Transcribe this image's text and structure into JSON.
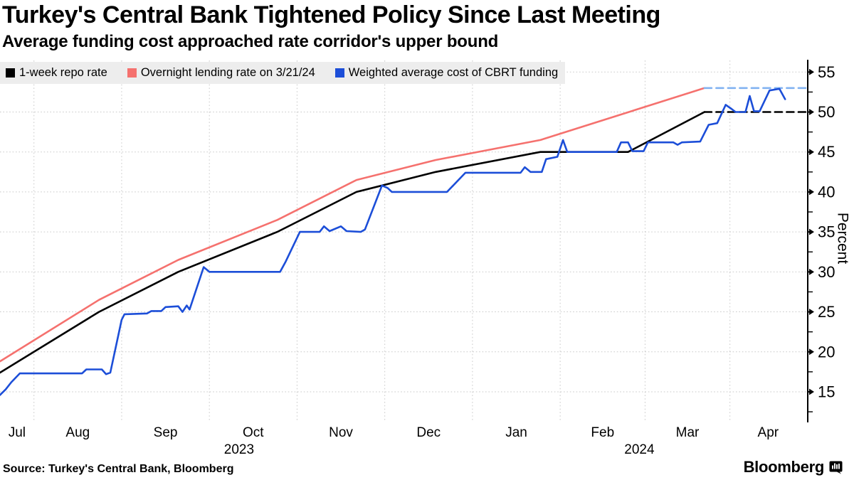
{
  "header": {
    "title": "Turkey's Central Bank Tightened Policy Since Last Meeting",
    "subtitle": "Average funding cost approached rate corridor's upper bound"
  },
  "legend": [
    {
      "label": "1-week repo rate",
      "color": "#000000"
    },
    {
      "label": "Overnight lending rate on 3/21/24",
      "color": "#f5716e"
    },
    {
      "label": "Weighted average cost of CBRT funding",
      "color": "#1c4ed8"
    }
  ],
  "footer": {
    "source": "Source: Turkey's Central Bank, Bloomberg",
    "brand": "Bloomberg"
  },
  "chart_data": {
    "type": "line",
    "title": "Turkey's Central Bank Tightened Policy Since Last Meeting",
    "x_unit": "days since 2023-07-20",
    "x_domain": [
      0,
      285
    ],
    "ylim": [
      11.35,
      56.45
    ],
    "grid": true,
    "legend_position": "top-left",
    "yaxis": {
      "label": "Percent",
      "ticks": [
        15,
        20,
        25,
        30,
        35,
        40,
        45,
        50,
        55
      ],
      "minor_tick_step": 2.5,
      "minor_tick_range": [
        12.5,
        55
      ]
    },
    "xaxis": {
      "month_start_days": [
        12,
        43,
        74,
        105,
        136,
        167,
        198,
        228,
        258
      ],
      "month_labels": [
        {
          "label": "Jul",
          "day": 6
        },
        {
          "label": "Aug",
          "day": 27.5
        },
        {
          "label": "Sep",
          "day": 58.5
        },
        {
          "label": "Oct",
          "day": 89.5
        },
        {
          "label": "Nov",
          "day": 120.5
        },
        {
          "label": "Dec",
          "day": 151.5
        },
        {
          "label": "Jan",
          "day": 182.5
        },
        {
          "label": "Feb",
          "day": 213
        },
        {
          "label": "Mar",
          "day": 243
        },
        {
          "label": "Apr",
          "day": 271.5
        }
      ],
      "year_labels": [
        {
          "label": "2023",
          "day": 84.5
        },
        {
          "label": "2024",
          "day": 226
        }
      ]
    },
    "colors": {
      "repo": "#000000",
      "lending": "#f5716e",
      "wacf": "#1c4ed8",
      "lending_projection": "#82b3f1",
      "gridline": "#c9c9c9",
      "legend_bg": "#ededed"
    },
    "series": [
      {
        "name": "1-week repo rate",
        "color": "#000000",
        "style": "solid",
        "width": 2.6,
        "points": [
          [
            0,
            17.4
          ],
          [
            35,
            25
          ],
          [
            63,
            30
          ],
          [
            98,
            35
          ],
          [
            126,
            40
          ],
          [
            154,
            42.5
          ],
          [
            191,
            45
          ],
          [
            222,
            45
          ],
          [
            249,
            50
          ]
        ]
      },
      {
        "name": "Overnight lending rate on 3/21/24",
        "color": "#f5716e",
        "style": "solid",
        "width": 2.6,
        "points": [
          [
            0,
            18.8
          ],
          [
            35,
            26.5
          ],
          [
            63,
            31.5
          ],
          [
            98,
            36.5
          ],
          [
            126,
            41.5
          ],
          [
            154,
            44
          ],
          [
            191,
            46.5
          ],
          [
            249,
            53
          ]
        ]
      },
      {
        "name": "1-week repo rate held after 3/21/24",
        "color": "#000000",
        "style": "dashed",
        "width": 2.6,
        "points": [
          [
            249,
            50
          ],
          [
            285,
            50
          ]
        ]
      },
      {
        "name": "Overnight lending rate held after 3/21/24",
        "color": "#82b3f1",
        "style": "dashed",
        "width": 2.6,
        "points": [
          [
            249,
            53
          ],
          [
            285,
            53
          ]
        ]
      },
      {
        "name": "Weighted average cost of CBRT funding",
        "color": "#1c4ed8",
        "style": "solid",
        "width": 2.6,
        "points": [
          [
            0,
            14.6
          ],
          [
            2,
            15.3
          ],
          [
            4,
            16.2
          ],
          [
            7,
            17.3
          ],
          [
            29,
            17.3
          ],
          [
            30.5,
            17.8
          ],
          [
            36,
            17.8
          ],
          [
            37.5,
            17.2
          ],
          [
            39,
            17.4
          ],
          [
            43,
            24.0
          ],
          [
            44,
            24.7
          ],
          [
            52,
            24.8
          ],
          [
            53.5,
            25.1
          ],
          [
            57,
            25.1
          ],
          [
            58.5,
            25.6
          ],
          [
            63,
            25.7
          ],
          [
            64.5,
            25.0
          ],
          [
            66,
            25.8
          ],
          [
            67,
            25.3
          ],
          [
            72,
            30.6
          ],
          [
            74,
            30.0
          ],
          [
            99,
            30.0
          ],
          [
            101,
            31.3
          ],
          [
            106,
            35.0
          ],
          [
            113,
            35.0
          ],
          [
            114.5,
            35.7
          ],
          [
            116.5,
            35.1
          ],
          [
            120.5,
            35.7
          ],
          [
            122.5,
            35.1
          ],
          [
            127.5,
            35.0
          ],
          [
            129,
            35.3
          ],
          [
            135,
            40.8
          ],
          [
            137,
            40.5
          ],
          [
            138.5,
            40.0
          ],
          [
            158,
            40.0
          ],
          [
            164.5,
            42.4
          ],
          [
            184,
            42.4
          ],
          [
            185.5,
            43.1
          ],
          [
            187.5,
            42.5
          ],
          [
            191.5,
            42.5
          ],
          [
            193,
            44.1
          ],
          [
            197,
            44.4
          ],
          [
            199,
            46.5
          ],
          [
            200.5,
            45.0
          ],
          [
            218,
            45.0
          ],
          [
            219.5,
            46.2
          ],
          [
            222,
            46.2
          ],
          [
            223.5,
            45.1
          ],
          [
            227.5,
            45.1
          ],
          [
            229,
            46.2
          ],
          [
            238,
            46.2
          ],
          [
            239.5,
            45.9
          ],
          [
            241,
            46.2
          ],
          [
            247.5,
            46.3
          ],
          [
            250.5,
            48.4
          ],
          [
            253.5,
            48.6
          ],
          [
            256.5,
            50.9
          ],
          [
            258.5,
            50.4
          ],
          [
            260,
            50.0
          ],
          [
            263.5,
            50.0
          ],
          [
            265,
            52.0
          ],
          [
            266.5,
            50.1
          ],
          [
            268.5,
            50.1
          ],
          [
            272,
            52.7
          ],
          [
            275.5,
            52.9
          ],
          [
            277.5,
            51.6
          ]
        ]
      }
    ]
  }
}
